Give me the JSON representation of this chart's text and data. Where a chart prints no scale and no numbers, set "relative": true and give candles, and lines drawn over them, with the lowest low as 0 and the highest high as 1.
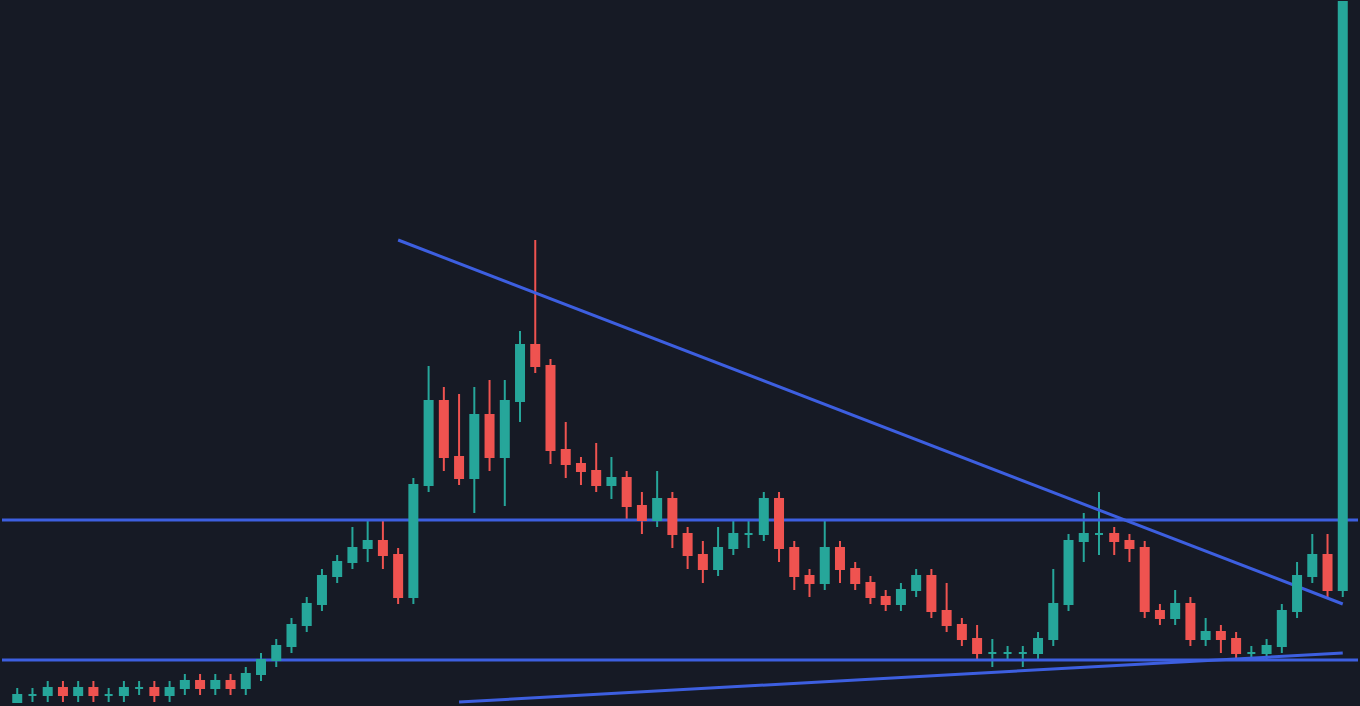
{
  "chart_data": {
    "type": "candlestick",
    "relative": true,
    "categories": [
      null,
      null,
      null,
      null,
      null,
      null,
      null,
      null,
      null,
      null,
      null,
      null,
      null,
      null,
      null,
      null,
      null,
      null,
      null,
      null,
      null,
      null,
      null,
      null,
      null,
      null,
      null,
      null,
      null,
      null,
      null,
      null,
      null,
      null,
      null,
      null,
      null,
      null,
      null,
      null,
      null,
      null,
      null,
      null,
      null,
      null,
      null,
      null,
      null,
      null,
      null,
      null,
      null,
      null,
      null,
      null,
      null,
      null,
      null,
      null,
      null,
      null,
      null,
      null,
      null,
      null,
      null,
      null,
      null,
      null,
      null,
      null,
      null,
      null,
      null,
      null,
      null,
      null,
      null,
      null,
      null,
      null,
      null,
      null,
      null,
      null,
      null,
      null
    ],
    "ref_lines": [
      {
        "axis": "y",
        "value": 0.26,
        "color": "#3d5fe0"
      },
      {
        "axis": "y",
        "value": 0.06,
        "color": "#3d5fe0"
      }
    ],
    "ohlc": [
      [
        0.0,
        0.02,
        0.0,
        0.01
      ],
      [
        0.01,
        0.02,
        0.0,
        0.01
      ],
      [
        0.01,
        0.03,
        0.0,
        0.02
      ],
      [
        0.02,
        0.03,
        0.0,
        0.01
      ],
      [
        0.01,
        0.03,
        0.0,
        0.02
      ],
      [
        0.02,
        0.03,
        0.0,
        0.01
      ],
      [
        0.01,
        0.02,
        0.0,
        0.01
      ],
      [
        0.01,
        0.03,
        0.0,
        0.02
      ],
      [
        0.02,
        0.03,
        0.01,
        0.02
      ],
      [
        0.02,
        0.03,
        0.0,
        0.01
      ],
      [
        0.01,
        0.03,
        0.0,
        0.02
      ],
      [
        0.02,
        0.04,
        0.01,
        0.03
      ],
      [
        0.03,
        0.04,
        0.01,
        0.02
      ],
      [
        0.02,
        0.04,
        0.01,
        0.03
      ],
      [
        0.03,
        0.04,
        0.01,
        0.02
      ],
      [
        0.02,
        0.05,
        0.01,
        0.04
      ],
      [
        0.04,
        0.07,
        0.03,
        0.06
      ],
      [
        0.06,
        0.09,
        0.05,
        0.08
      ],
      [
        0.08,
        0.12,
        0.07,
        0.11
      ],
      [
        0.11,
        0.15,
        0.1,
        0.14
      ],
      [
        0.14,
        0.19,
        0.13,
        0.18
      ],
      [
        0.18,
        0.21,
        0.17,
        0.2
      ],
      [
        0.2,
        0.25,
        0.19,
        0.22
      ],
      [
        0.22,
        0.26,
        0.2,
        0.23
      ],
      [
        0.23,
        0.26,
        0.19,
        0.21
      ],
      [
        0.21,
        0.22,
        0.14,
        0.15
      ],
      [
        0.15,
        0.32,
        0.14,
        0.31
      ],
      [
        0.31,
        0.48,
        0.3,
        0.43
      ],
      [
        0.43,
        0.45,
        0.33,
        0.35
      ],
      [
        0.35,
        0.44,
        0.31,
        0.32
      ],
      [
        0.32,
        0.45,
        0.27,
        0.41
      ],
      [
        0.41,
        0.46,
        0.33,
        0.35
      ],
      [
        0.35,
        0.46,
        0.28,
        0.43
      ],
      [
        0.43,
        0.53,
        0.4,
        0.51
      ],
      [
        0.51,
        0.66,
        0.47,
        0.48
      ],
      [
        0.48,
        0.49,
        0.34,
        0.36
      ],
      [
        0.36,
        0.4,
        0.32,
        0.34
      ],
      [
        0.34,
        0.35,
        0.31,
        0.33
      ],
      [
        0.33,
        0.37,
        0.3,
        0.31
      ],
      [
        0.31,
        0.35,
        0.29,
        0.32
      ],
      [
        0.32,
        0.33,
        0.26,
        0.28
      ],
      [
        0.28,
        0.3,
        0.24,
        0.26
      ],
      [
        0.26,
        0.33,
        0.25,
        0.29
      ],
      [
        0.29,
        0.3,
        0.22,
        0.24
      ],
      [
        0.24,
        0.25,
        0.19,
        0.21
      ],
      [
        0.21,
        0.23,
        0.17,
        0.19
      ],
      [
        0.19,
        0.25,
        0.18,
        0.22
      ],
      [
        0.22,
        0.26,
        0.21,
        0.24
      ],
      [
        0.24,
        0.26,
        0.22,
        0.24
      ],
      [
        0.24,
        0.3,
        0.23,
        0.29
      ],
      [
        0.29,
        0.3,
        0.2,
        0.22
      ],
      [
        0.22,
        0.23,
        0.16,
        0.18
      ],
      [
        0.18,
        0.19,
        0.15,
        0.17
      ],
      [
        0.17,
        0.26,
        0.16,
        0.22
      ],
      [
        0.22,
        0.23,
        0.17,
        0.19
      ],
      [
        0.19,
        0.2,
        0.16,
        0.17
      ],
      [
        0.17,
        0.18,
        0.14,
        0.15
      ],
      [
        0.15,
        0.16,
        0.13,
        0.14
      ],
      [
        0.14,
        0.17,
        0.13,
        0.16
      ],
      [
        0.16,
        0.19,
        0.15,
        0.18
      ],
      [
        0.18,
        0.19,
        0.12,
        0.13
      ],
      [
        0.13,
        0.17,
        0.1,
        0.11
      ],
      [
        0.11,
        0.12,
        0.08,
        0.09
      ],
      [
        0.09,
        0.11,
        0.06,
        0.07
      ],
      [
        0.07,
        0.09,
        0.05,
        0.07
      ],
      [
        0.07,
        0.08,
        0.06,
        0.07
      ],
      [
        0.07,
        0.08,
        0.05,
        0.07
      ],
      [
        0.07,
        0.1,
        0.06,
        0.09
      ],
      [
        0.09,
        0.19,
        0.08,
        0.14
      ],
      [
        0.14,
        0.24,
        0.13,
        0.23
      ],
      [
        0.23,
        0.27,
        0.2,
        0.24
      ],
      [
        0.24,
        0.3,
        0.21,
        0.24
      ],
      [
        0.24,
        0.25,
        0.21,
        0.23
      ],
      [
        0.23,
        0.24,
        0.2,
        0.22
      ],
      [
        0.22,
        0.23,
        0.12,
        0.13
      ],
      [
        0.13,
        0.14,
        0.11,
        0.12
      ],
      [
        0.12,
        0.16,
        0.11,
        0.14
      ],
      [
        0.14,
        0.15,
        0.08,
        0.09
      ],
      [
        0.09,
        0.12,
        0.08,
        0.1
      ],
      [
        0.1,
        0.11,
        0.07,
        0.09
      ],
      [
        0.09,
        0.1,
        0.06,
        0.07
      ],
      [
        0.07,
        0.08,
        0.06,
        0.07
      ],
      [
        0.07,
        0.09,
        0.06,
        0.08
      ],
      [
        0.08,
        0.14,
        0.07,
        0.13
      ],
      [
        0.13,
        0.2,
        0.12,
        0.18
      ],
      [
        0.18,
        0.24,
        0.17,
        0.21
      ],
      [
        0.21,
        0.24,
        0.15,
        0.16
      ],
      [
        0.16,
        1.0,
        0.15,
        1.0
      ]
    ],
    "colors": [
      "#26a69a",
      "#26a69a",
      "#26a69a",
      "#ef5350",
      "#26a69a",
      "#ef5350",
      "#26a69a",
      "#26a69a",
      "#26a69a",
      "#ef5350",
      "#26a69a",
      "#26a69a",
      "#ef5350",
      "#26a69a",
      "#ef5350",
      "#26a69a",
      "#26a69a",
      "#26a69a",
      "#26a69a",
      "#26a69a",
      "#26a69a",
      "#26a69a",
      "#26a69a",
      "#26a69a",
      "#ef5350",
      "#ef5350",
      "#26a69a",
      "#26a69a",
      "#ef5350",
      "#ef5350",
      "#26a69a",
      "#ef5350",
      "#26a69a",
      "#26a69a",
      "#ef5350",
      "#ef5350",
      "#ef5350",
      "#ef5350",
      "#ef5350",
      "#26a69a",
      "#ef5350",
      "#ef5350",
      "#26a69a",
      "#ef5350",
      "#ef5350",
      "#ef5350",
      "#26a69a",
      "#26a69a",
      "#26a69a",
      "#26a69a",
      "#ef5350",
      "#ef5350",
      "#ef5350",
      "#26a69a",
      "#ef5350",
      "#ef5350",
      "#ef5350",
      "#ef5350",
      "#26a69a",
      "#26a69a",
      "#ef5350",
      "#ef5350",
      "#ef5350",
      "#ef5350",
      "#26a69a",
      "#26a69a",
      "#26a69a",
      "#26a69a",
      "#26a69a",
      "#26a69a",
      "#26a69a",
      "#26a69a",
      "#ef5350",
      "#ef5350",
      "#ef5350",
      "#ef5350",
      "#26a69a",
      "#ef5350",
      "#26a69a",
      "#ef5350",
      "#ef5350",
      "#26a69a",
      "#26a69a",
      "#26a69a",
      "#26a69a",
      "#26a69a",
      "#ef5350",
      "#26a69a"
    ],
    "series": [
      {
        "type": "line",
        "color": "#3d5fe0",
        "values": [
          null,
          null,
          null,
          null,
          null,
          null,
          null,
          null,
          null,
          null,
          null,
          null,
          null,
          null,
          null,
          null,
          null,
          null,
          null,
          null,
          null,
          null,
          null,
          null,
          null,
          0.66,
          null,
          null,
          null,
          null,
          null,
          null,
          null,
          null,
          null,
          null,
          null,
          null,
          null,
          null,
          null,
          null,
          null,
          null,
          null,
          null,
          null,
          null,
          null,
          null,
          null,
          null,
          null,
          null,
          null,
          null,
          null,
          null,
          null,
          null,
          null,
          null,
          null,
          null,
          null,
          null,
          null,
          null,
          null,
          null,
          null,
          null,
          null,
          null,
          null,
          null,
          null,
          null,
          null,
          null,
          null,
          null,
          null,
          null,
          null,
          null,
          null,
          0.14
        ]
      },
      {
        "type": "line",
        "color": "#3d5fe0",
        "values": [
          null,
          null,
          null,
          null,
          null,
          null,
          null,
          null,
          null,
          null,
          null,
          null,
          null,
          null,
          null,
          null,
          null,
          null,
          null,
          null,
          null,
          null,
          null,
          null,
          null,
          null,
          null,
          null,
          null,
          0.0,
          null,
          null,
          null,
          null,
          null,
          null,
          null,
          null,
          null,
          null,
          null,
          null,
          null,
          null,
          null,
          null,
          null,
          null,
          null,
          null,
          null,
          null,
          null,
          null,
          null,
          null,
          null,
          null,
          null,
          null,
          null,
          null,
          null,
          null,
          null,
          null,
          null,
          null,
          null,
          null,
          null,
          null,
          null,
          null,
          null,
          null,
          null,
          null,
          null,
          null,
          null,
          null,
          null,
          null,
          null,
          null,
          null,
          0.07
        ]
      }
    ]
  }
}
